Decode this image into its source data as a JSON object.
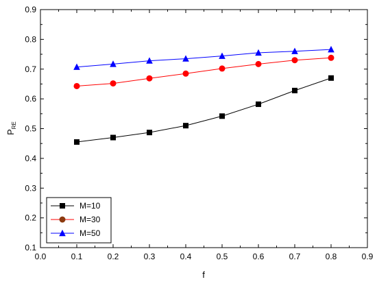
{
  "chart_data": {
    "type": "line",
    "title": "",
    "xlabel": "f",
    "ylabel": "P",
    "ylabel_sub": "RE",
    "xlim": [
      0.0,
      0.9
    ],
    "ylim": [
      0.1,
      0.9
    ],
    "xticks": [
      "0.0",
      "0.1",
      "0.2",
      "0.3",
      "0.4",
      "0.5",
      "0.6",
      "0.7",
      "0.8",
      "0.9"
    ],
    "yticks": [
      "0.1",
      "0.2",
      "0.3",
      "0.4",
      "0.5",
      "0.6",
      "0.7",
      "0.8",
      "0.9"
    ],
    "grid": false,
    "legend_position": "bottom-left",
    "x": [
      0.1,
      0.2,
      0.3,
      0.4,
      0.5,
      0.6,
      0.7,
      0.8
    ],
    "series": [
      {
        "name": "M=10",
        "marker": "square",
        "color": "#000000",
        "line_color": "#000000",
        "values": [
          0.455,
          0.47,
          0.487,
          0.51,
          0.542,
          0.582,
          0.628,
          0.67
        ]
      },
      {
        "name": "M=30",
        "marker": "circle",
        "color": "#ff0000",
        "line_color": "#ff0000",
        "legend_color": "#8b3a0f",
        "values": [
          0.643,
          0.652,
          0.669,
          0.685,
          0.702,
          0.717,
          0.73,
          0.738
        ]
      },
      {
        "name": "M=50",
        "marker": "triangle",
        "color": "#0000ff",
        "line_color": "#0000ff",
        "values": [
          0.707,
          0.717,
          0.728,
          0.735,
          0.744,
          0.755,
          0.76,
          0.766
        ]
      }
    ]
  }
}
